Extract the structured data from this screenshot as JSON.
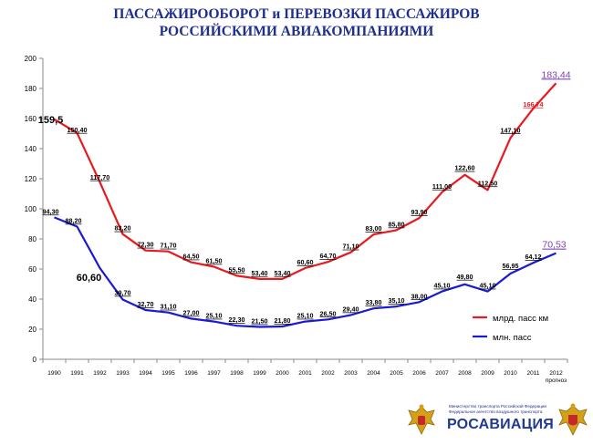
{
  "slide": {
    "title_line1": "ПАССАЖИРООБОРОТ  и ПЕРЕВОЗКИ  ПАССАЖИРОВ",
    "title_line2": "РОССИЙСКИМИ  АВИАКОМПАНИЯМИ"
  },
  "chart_data": {
    "type": "line",
    "categories": [
      "1990",
      "1991",
      "1992",
      "1993",
      "1994",
      "1995",
      "1996",
      "1997",
      "1998",
      "1999",
      "2000",
      "2001",
      "2002",
      "2003",
      "2004",
      "2005",
      "2006",
      "2007",
      "2008",
      "2009",
      "2010",
      "2011",
      "2012"
    ],
    "x_sublabel": {
      "category": "2012",
      "text": "прогноз"
    },
    "ylim": [
      0,
      200
    ],
    "yticks": [
      0,
      20,
      40,
      60,
      80,
      100,
      120,
      140,
      160,
      180,
      200
    ],
    "grid": false,
    "legend_position": "right-middle",
    "series": [
      {
        "name": "млрд. пасс км",
        "color": "#e8191f",
        "values": [
          159.5,
          150.4,
          117.7,
          83.2,
          72.3,
          71.7,
          64.5,
          61.5,
          55.5,
          53.4,
          53.4,
          60.6,
          64.7,
          71.1,
          83.0,
          85.8,
          93.9,
          111.0,
          122.6,
          112.5,
          147.1,
          166.74,
          183.44
        ],
        "labels": [
          "159,5",
          "150,40",
          "117,70",
          "83,20",
          "72,30",
          "71,70",
          "64,50",
          "61,50",
          "55,50",
          "53,40",
          "53,40",
          "60,60",
          "64,70",
          "71,10",
          "83,00",
          "85,80",
          "93,90",
          "111,00",
          "122,60",
          "112,50",
          "147,10",
          "166,74",
          "183,44"
        ]
      },
      {
        "name": "млн. пасс",
        "color": "#1a1ad6",
        "values": [
          94.3,
          88.2,
          60.6,
          39.7,
          32.7,
          31.1,
          27.0,
          25.1,
          22.3,
          21.5,
          21.8,
          25.1,
          26.5,
          29.4,
          33.8,
          35.1,
          38.0,
          45.1,
          49.8,
          45.1,
          56.95,
          64.12,
          70.53
        ],
        "labels": [
          "94,30",
          "88,20",
          "60,60",
          "39,70",
          "32,70",
          "31,10",
          "27,00",
          "25,10",
          "22,30",
          "21,50",
          "21,80",
          "25,10",
          "26,50",
          "29,40",
          "33,80",
          "35,10",
          "38,00",
          "45,10",
          "49,80",
          "45,10",
          "56,95",
          "64,12",
          "70,53"
        ]
      }
    ]
  },
  "footer": {
    "agency_line1": "Министерство транспорта Российской Федерации",
    "agency_line2": "Федеральное агентство воздушного транспорта",
    "brand": "РОСАВИАЦИЯ"
  },
  "colors": {
    "title": "#1f2f8f",
    "highlight": "#7b3fb3"
  }
}
